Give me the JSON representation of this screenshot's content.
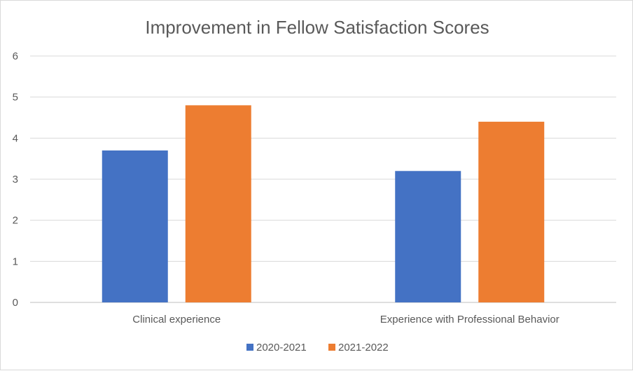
{
  "chart_data": {
    "type": "bar",
    "title": "Improvement in Fellow Satisfaction Scores",
    "categories": [
      "Clinical experience",
      "Experience with Professional Behavior"
    ],
    "series": [
      {
        "name": "2020-2021",
        "values": [
          3.7,
          3.2
        ],
        "color": "#4472C4"
      },
      {
        "name": "2021-2022",
        "values": [
          4.8,
          4.4
        ],
        "color": "#ED7D31"
      }
    ],
    "ylim": [
      0,
      6
    ],
    "yticks": [
      "0",
      "1",
      "2",
      "3",
      "4",
      "5",
      "6"
    ],
    "grid": true,
    "legend": "bottom"
  }
}
